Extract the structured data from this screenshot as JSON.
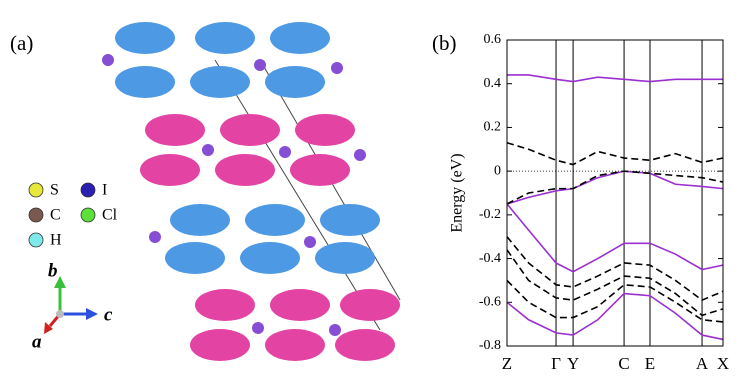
{
  "panel_a": {
    "label": "(a)",
    "legend": [
      {
        "symbol": "S",
        "color": "#e8e83a"
      },
      {
        "symbol": "I",
        "color": "#2a1fb0"
      },
      {
        "symbol": "C",
        "color": "#7a5a50"
      },
      {
        "symbol": "Cl",
        "color": "#5ee03a"
      },
      {
        "symbol": "H",
        "color": "#7fe8e8"
      }
    ],
    "axes": {
      "b": "b",
      "c": "c",
      "a": "a"
    }
  },
  "chart_data": {
    "type": "line",
    "label": "(b)",
    "ylabel": "Energy (eV)",
    "xlim": [
      0,
      1
    ],
    "ylim": [
      -0.8,
      0.6
    ],
    "yticks": [
      -0.8,
      -0.6,
      -0.4,
      -0.2,
      0,
      0.2,
      0.4,
      0.6
    ],
    "xticks": [
      {
        "value": 0,
        "label": "Z"
      },
      {
        "value": 0.227,
        "label": "Γ"
      },
      {
        "value": 0.306,
        "label": "Y"
      },
      {
        "value": 0.542,
        "label": "C"
      },
      {
        "value": 0.662,
        "label": "E"
      },
      {
        "value": 0.903,
        "label": "A"
      },
      {
        "value": 1,
        "label": "X"
      }
    ],
    "reference_line": 0,
    "x": [
      0,
      0.1,
      0.227,
      0.306,
      0.42,
      0.542,
      0.662,
      0.78,
      0.903,
      1
    ],
    "series": [
      {
        "color": "#9b30d0",
        "dash": false,
        "values": [
          0.44,
          0.44,
          0.42,
          0.41,
          0.43,
          0.42,
          0.41,
          0.42,
          0.42,
          0.42
        ]
      },
      {
        "color": "#000000",
        "dash": true,
        "values": [
          0.13,
          0.1,
          0.05,
          0.03,
          0.09,
          0.06,
          0.05,
          0.08,
          0.04,
          0.06
        ]
      },
      {
        "color": "#9b30d0",
        "dash": false,
        "values": [
          -0.15,
          -0.12,
          -0.09,
          -0.08,
          -0.03,
          0,
          -0.01,
          -0.06,
          -0.07,
          -0.08
        ]
      },
      {
        "color": "#000000",
        "dash": true,
        "values": [
          -0.15,
          -0.1,
          -0.08,
          -0.08,
          -0.02,
          0,
          -0.01,
          -0.02,
          -0.03,
          -0.05
        ]
      },
      {
        "color": "#9b30d0",
        "dash": false,
        "values": [
          -0.15,
          -0.27,
          -0.42,
          -0.46,
          -0.4,
          -0.33,
          -0.33,
          -0.38,
          -0.45,
          -0.43
        ]
      },
      {
        "color": "#000000",
        "dash": true,
        "values": [
          -0.3,
          -0.42,
          -0.52,
          -0.53,
          -0.48,
          -0.42,
          -0.43,
          -0.5,
          -0.59,
          -0.55
        ]
      },
      {
        "color": "#000000",
        "dash": true,
        "values": [
          -0.36,
          -0.5,
          -0.58,
          -0.59,
          -0.54,
          -0.48,
          -0.49,
          -0.56,
          -0.66,
          -0.63
        ]
      },
      {
        "color": "#000000",
        "dash": true,
        "values": [
          -0.5,
          -0.6,
          -0.67,
          -0.67,
          -0.62,
          -0.52,
          -0.53,
          -0.6,
          -0.68,
          -0.69
        ]
      },
      {
        "color": "#9b30d0",
        "dash": false,
        "values": [
          -0.6,
          -0.68,
          -0.74,
          -0.75,
          -0.68,
          -0.56,
          -0.57,
          -0.65,
          -0.75,
          -0.77
        ]
      }
    ]
  }
}
